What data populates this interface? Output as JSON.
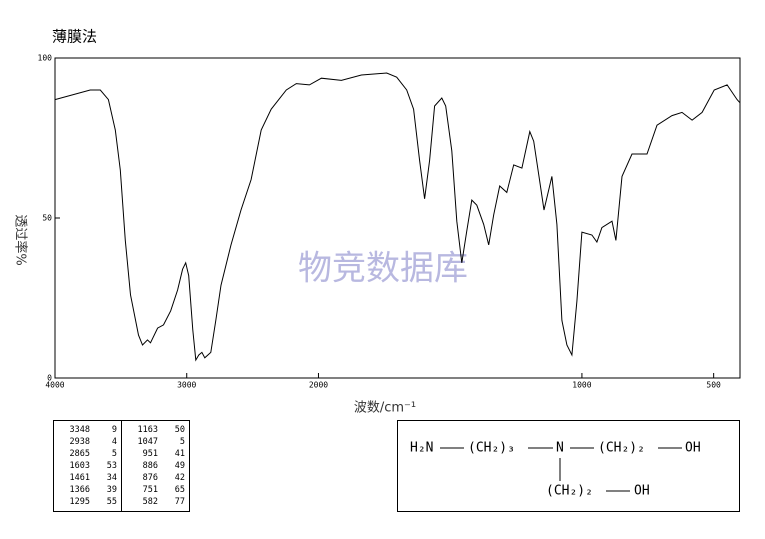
{
  "chart_data": {
    "type": "line",
    "title": "薄膜法",
    "watermark": "物竞数据库",
    "x_label": "波数/cm⁻¹",
    "y_label": "透过率%",
    "xlim": [
      4000,
      400
    ],
    "x_scale_change": 2000,
    "ylim": [
      0,
      100
    ],
    "xticks": [
      4000,
      3000,
      2000,
      1000,
      500
    ],
    "yticks": [
      0,
      50,
      100
    ],
    "color": "#000000",
    "x": [
      4000,
      3733,
      3656,
      3595,
      3542,
      3504,
      3466,
      3427,
      3366,
      3336,
      3298,
      3275,
      3221,
      3176,
      3122,
      3069,
      3031,
      3008,
      2985,
      2954,
      2931,
      2908,
      2885,
      2863,
      2817,
      2779,
      2740,
      2664,
      2588,
      2511,
      2435,
      2359,
      2244,
      2168,
      2069,
      1989,
      1913,
      1837,
      1741,
      1703,
      1665,
      1639,
      1616,
      1597,
      1578,
      1559,
      1532,
      1517,
      1494,
      1475,
      1456,
      1437,
      1418,
      1399,
      1373,
      1354,
      1335,
      1312,
      1285,
      1259,
      1228,
      1198,
      1183,
      1163,
      1144,
      1114,
      1095,
      1076,
      1057,
      1038,
      1019,
      1000,
      962,
      943,
      924,
      886,
      871,
      848,
      810,
      753,
      715,
      658,
      620,
      582,
      544,
      498,
      449,
      411,
      400
    ],
    "values": [
      87,
      90,
      90,
      87,
      77.5,
      65,
      43,
      26,
      13.4,
      10.3,
      11.9,
      11,
      15.6,
      16.6,
      21,
      27.5,
      34,
      36,
      32,
      15,
      5.6,
      7.2,
      8,
      6.3,
      8,
      18,
      29,
      41.6,
      52.5,
      62,
      77.5,
      84,
      90,
      92,
      91.6,
      93.7,
      93,
      94.7,
      95.3,
      94,
      90,
      84,
      68,
      56,
      68,
      85,
      87.5,
      85,
      71,
      49,
      36,
      46,
      55.6,
      54,
      48,
      41.6,
      51,
      60,
      58,
      66.6,
      65.6,
      77,
      74,
      63,
      52.5,
      63,
      48,
      18,
      10.3,
      7.2,
      24,
      45.6,
      44.7,
      42.5,
      47,
      49,
      43,
      63,
      70,
      70,
      79,
      82,
      83,
      80.6,
      83,
      90,
      91.6,
      87,
      86
    ]
  },
  "peak_table": {
    "rows": [
      [
        3348,
        9,
        1163,
        50
      ],
      [
        2938,
        4,
        1047,
        5
      ],
      [
        2865,
        5,
        951,
        41
      ],
      [
        1603,
        53,
        886,
        49
      ],
      [
        1461,
        34,
        876,
        42
      ],
      [
        1366,
        39,
        751,
        65
      ],
      [
        1295,
        55,
        582,
        77
      ]
    ]
  },
  "structure": {
    "labels": [
      "H₂N",
      "(CH₂)₃",
      "N",
      "(CH₂)₂",
      "OH",
      "(CH₂)₂",
      "OH"
    ]
  }
}
